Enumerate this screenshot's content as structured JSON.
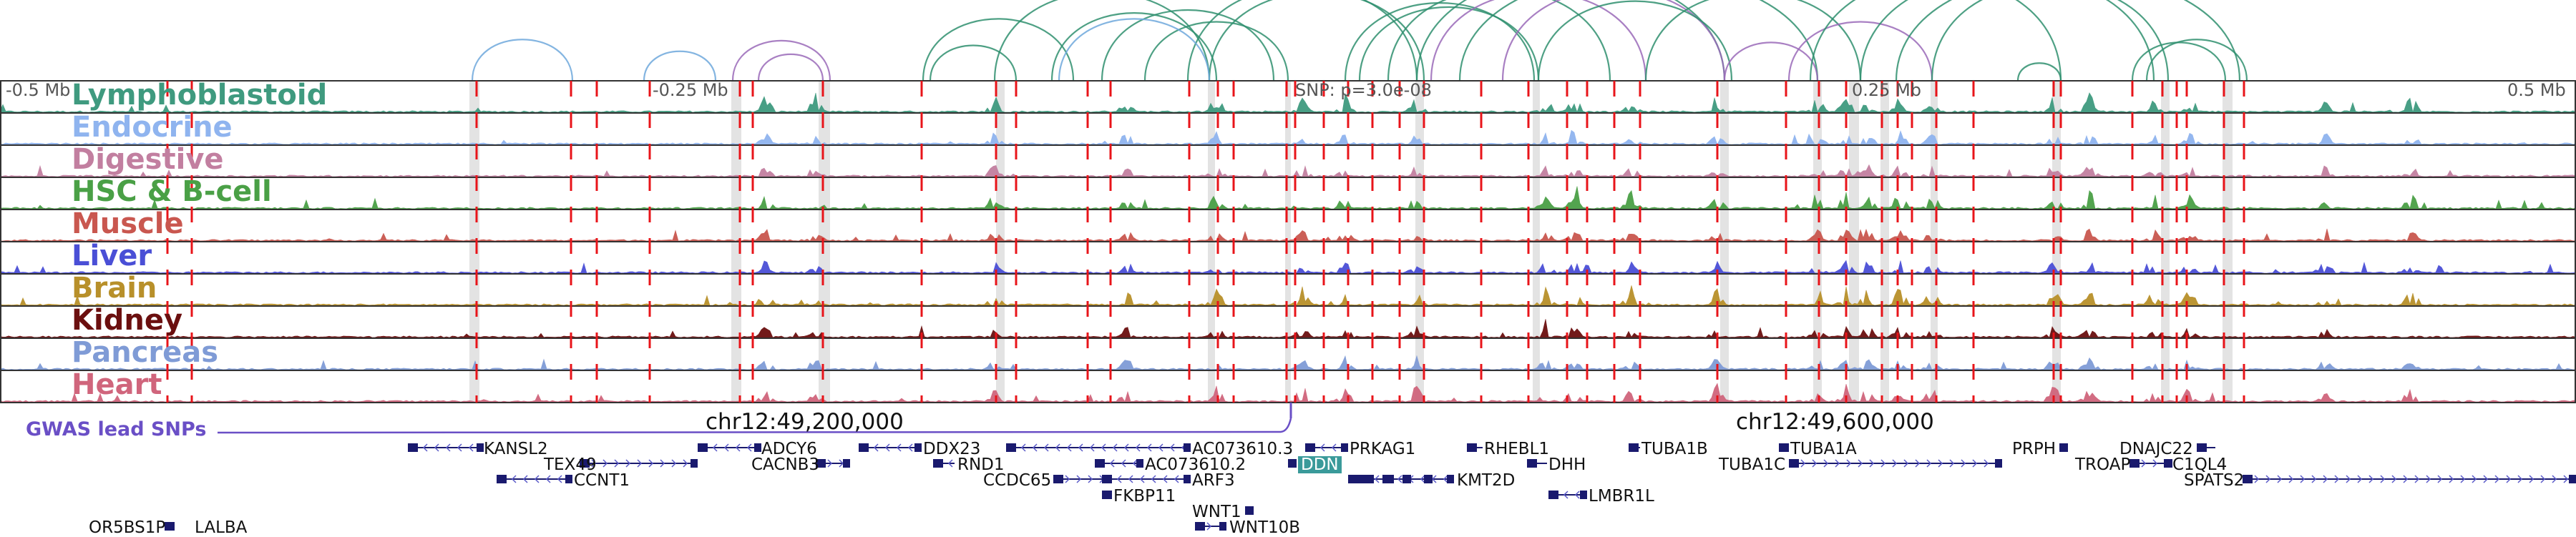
{
  "axis": {
    "left": "-0.5 Mb",
    "mid_left": "-0.25 Mb",
    "snp_label": "SNP: p=3.0e-08",
    "mid_right": "0.25 Mb",
    "right": "0.5 Mb"
  },
  "tracks": [
    {
      "name": "Lymphoblastoid",
      "color": "#3f9a7f"
    },
    {
      "name": "Endocrine",
      "color": "#8fb4ef"
    },
    {
      "name": "Digestive",
      "color": "#c27fa0"
    },
    {
      "name": "HSC & B-cell",
      "color": "#4aa046"
    },
    {
      "name": "Muscle",
      "color": "#c9574f"
    },
    {
      "name": "Liver",
      "color": "#4a4fd6"
    },
    {
      "name": "Brain",
      "color": "#b8902a"
    },
    {
      "name": "Kidney",
      "color": "#6b0f0f"
    },
    {
      "name": "Pancreas",
      "color": "#7f9bd6"
    },
    {
      "name": "Heart",
      "color": "#d0657c"
    }
  ],
  "coordinates": {
    "left": "chr12:49,200,000",
    "right": "chr12:49,600,000"
  },
  "gwas": {
    "label": "GWAS lead SNPs",
    "color": "#6a4fc6"
  },
  "genes": [
    {
      "name": "KANSL2",
      "highlight": false
    },
    {
      "name": "TEX49",
      "highlight": false
    },
    {
      "name": "CCNT1",
      "highlight": false
    },
    {
      "name": "ADCY6",
      "highlight": false
    },
    {
      "name": "CACNB3",
      "highlight": false
    },
    {
      "name": "DDX23",
      "highlight": false
    },
    {
      "name": "RND1",
      "highlight": false
    },
    {
      "name": "AC073610.3",
      "highlight": false
    },
    {
      "name": "AC073610.2",
      "highlight": false
    },
    {
      "name": "CCDC65",
      "highlight": false
    },
    {
      "name": "ARF3",
      "highlight": false
    },
    {
      "name": "FKBP11",
      "highlight": false
    },
    {
      "name": "WNT1",
      "highlight": false
    },
    {
      "name": "WNT10B",
      "highlight": false
    },
    {
      "name": "PRKAG1",
      "highlight": false
    },
    {
      "name": "DDN",
      "highlight": true
    },
    {
      "name": "RHEBL1",
      "highlight": false
    },
    {
      "name": "DHH",
      "highlight": false
    },
    {
      "name": "KMT2D",
      "highlight": false
    },
    {
      "name": "LMBR1L",
      "highlight": false
    },
    {
      "name": "TUBA1B",
      "highlight": false
    },
    {
      "name": "TUBA1A",
      "highlight": false
    },
    {
      "name": "TUBA1C",
      "highlight": false
    },
    {
      "name": "PRPH",
      "highlight": false
    },
    {
      "name": "DNAJC22",
      "highlight": false
    },
    {
      "name": "TROAP",
      "highlight": false
    },
    {
      "name": "C1QL4",
      "highlight": false
    },
    {
      "name": "SPATS2",
      "highlight": false
    },
    {
      "name": "OR5BS1P",
      "highlight": false
    },
    {
      "name": "LALBA",
      "highlight": false
    }
  ],
  "colors": {
    "snp_line": "#e8141a",
    "highlight_band": "#d9d9d9",
    "arc_green": "#2f8f6f",
    "arc_purple": "#9a6ab8",
    "arc_blue": "#6fa8dc",
    "gene_body": "#1a1a6e",
    "gene_arrow": "#5a5ac8"
  }
}
